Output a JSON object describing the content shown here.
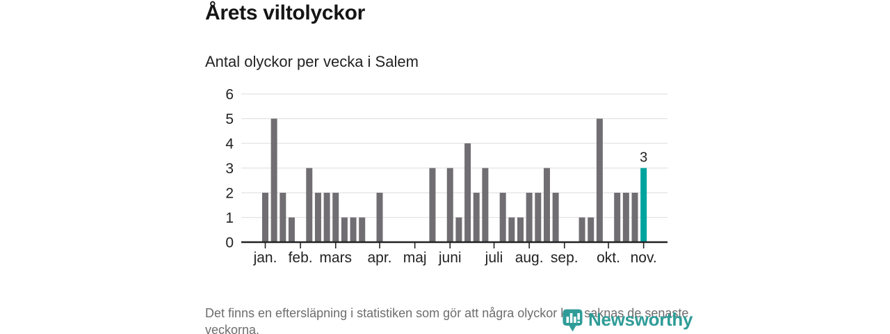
{
  "header": {
    "title": "Årets viltolyckor",
    "subtitle": "Antal olyckor per vecka i Salem"
  },
  "footer": {
    "note": "Det finns en eftersläpning i statistiken som gör att några olyckor kan saknas de senaste veckorna."
  },
  "branding": {
    "name": "Newsworthy",
    "icon": "bar-chart-pin-icon",
    "color": "#2f9c98"
  },
  "chart_data": {
    "type": "bar",
    "title": "Årets viltolyckor",
    "subtitle": "Antal olyckor per vecka i Salem",
    "x_unit": "vecka",
    "weeks": [
      1,
      2,
      3,
      4,
      5,
      6,
      7,
      8,
      9,
      10,
      11,
      12,
      13,
      14,
      15,
      16,
      17,
      18,
      19,
      20,
      21,
      22,
      23,
      24,
      25,
      26,
      27,
      28,
      29,
      30,
      31,
      32,
      33,
      34,
      35,
      36,
      37,
      38,
      39,
      40,
      41,
      42,
      43,
      44
    ],
    "values": [
      2,
      5,
      2,
      1,
      0,
      3,
      2,
      2,
      2,
      1,
      1,
      1,
      0,
      2,
      0,
      0,
      0,
      0,
      0,
      3,
      0,
      3,
      1,
      4,
      2,
      3,
      0,
      2,
      1,
      1,
      2,
      2,
      3,
      2,
      0,
      0,
      1,
      1,
      5,
      0,
      2,
      2,
      2,
      3
    ],
    "highlight_week": 44,
    "annotation": {
      "week": 44,
      "label": "3"
    },
    "month_ticks": [
      {
        "label": "jan.",
        "week": 1
      },
      {
        "label": "feb.",
        "week": 5
      },
      {
        "label": "mars",
        "week": 9
      },
      {
        "label": "apr.",
        "week": 14
      },
      {
        "label": "maj",
        "week": 18
      },
      {
        "label": "juni",
        "week": 22
      },
      {
        "label": "juli",
        "week": 27
      },
      {
        "label": "aug.",
        "week": 31
      },
      {
        "label": "sep.",
        "week": 35
      },
      {
        "label": "okt.",
        "week": 40
      },
      {
        "label": "nov.",
        "week": 44
      }
    ],
    "y_ticks": [
      0,
      1,
      2,
      3,
      4,
      5,
      6
    ],
    "ylim": [
      0,
      6
    ],
    "grid": true,
    "legend": "none",
    "bar_color": "#706e73",
    "highlight_color": "#00a49f",
    "grid_color": "#e2e2e2",
    "axis_color": "#222222",
    "tick_label_color": "#222222"
  }
}
